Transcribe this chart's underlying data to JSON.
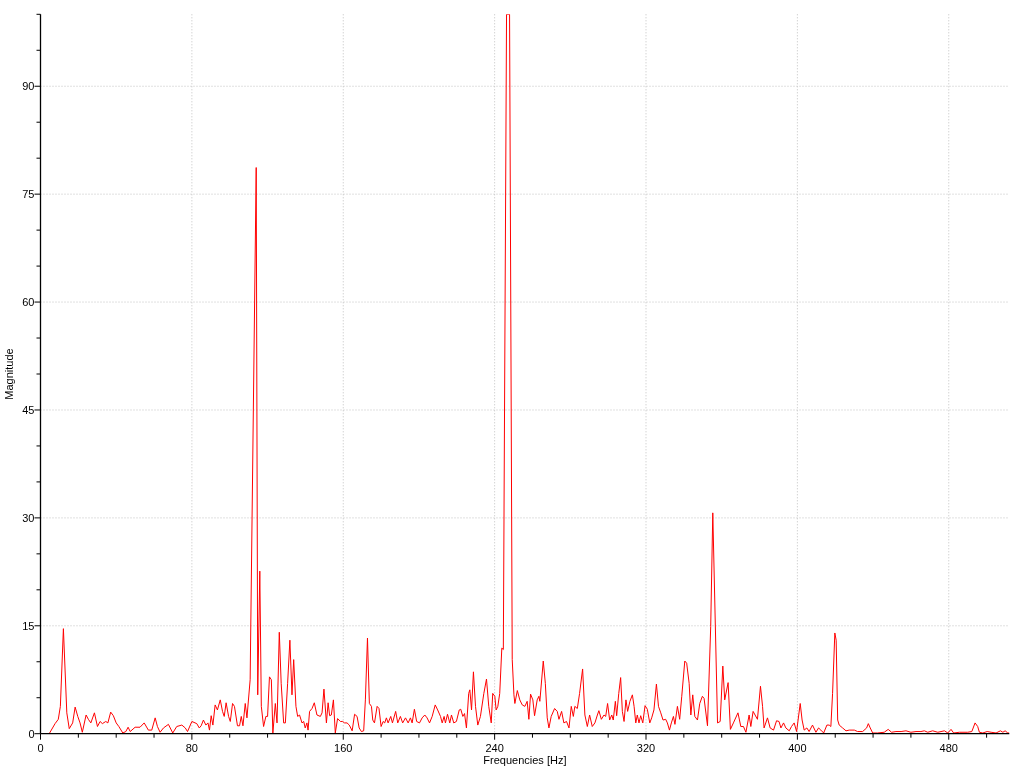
{
  "chart_data": {
    "type": "line",
    "xlabel": "Frequencies [Hz]",
    "ylabel": "Magnitude",
    "xlim": [
      0,
      512
    ],
    "ylim": [
      0,
      100
    ],
    "xticks": [
      0,
      {
        "value": 20,
        "label": null
      },
      {
        "value": 40,
        "label": null
      },
      {
        "value": 60,
        "label": null
      },
      80,
      {
        "value": 100,
        "label": null
      },
      {
        "value": 120,
        "label": null
      },
      {
        "value": 140,
        "label": null
      },
      160,
      {
        "value": 180,
        "label": null
      },
      {
        "value": 200,
        "label": null
      },
      {
        "value": 220,
        "label": null
      },
      240,
      {
        "value": 260,
        "label": null
      },
      {
        "value": 280,
        "label": null
      },
      {
        "value": 300,
        "label": null
      },
      320,
      {
        "value": 340,
        "label": null
      },
      {
        "value": 360,
        "label": null
      },
      {
        "value": 380,
        "label": null
      },
      400,
      {
        "value": 420,
        "label": null
      },
      {
        "value": 440,
        "label": null
      },
      {
        "value": 460,
        "label": null
      },
      480,
      {
        "value": 500,
        "label": null
      }
    ],
    "yticks": [
      0,
      {
        "value": 5,
        "label": null
      },
      {
        "value": 10,
        "label": null
      },
      15,
      {
        "value": 20,
        "label": null
      },
      {
        "value": 25,
        "label": null
      },
      30,
      {
        "value": 35,
        "label": null
      },
      {
        "value": 40,
        "label": null
      },
      45,
      {
        "value": 50,
        "label": null
      },
      {
        "value": 55,
        "label": null
      },
      60,
      {
        "value": 65,
        "label": null
      },
      {
        "value": 70,
        "label": null
      },
      75,
      {
        "value": 80,
        "label": null
      },
      {
        "value": 85,
        "label": null
      },
      90,
      {
        "value": 95,
        "label": null
      },
      {
        "value": 100,
        "label": null
      }
    ],
    "grid": true,
    "series": [
      {
        "color": "#ff0000",
        "x": [
          0,
          4.6,
          7.7,
          9.4,
          10.5,
          12.1,
          13.9,
          15.2,
          17,
          18.3,
          19.7,
          20.9,
          22.1,
          24.1,
          25.3,
          26.6,
          28.5,
          30.1,
          31.5,
          32.7,
          34.5,
          35.6,
          37.1,
          38.5,
          40,
          41.4,
          43.5,
          45.1,
          46.3,
          47.4,
          50,
          52.6,
          54.8,
          57,
          58.8,
          60.6,
          61.8,
          63.2,
          65,
          67.6,
          69.9,
          72,
          74.7,
          76.5,
          77.7,
          80,
          82.6,
          83.9,
          84.9,
          86.1,
          87.4,
          88.5,
          89.3,
          90.2,
          91.1,
          92.3,
          93.5,
          95,
          96.2,
          97.1,
          98.1,
          99.4,
          100.3,
          101.5,
          102.5,
          104.1,
          105.2,
          106.1,
          107,
          108.2,
          109.1,
          110.8,
          114,
          114.8,
          115.9,
          116.7,
          117.9,
          119.1,
          120,
          121,
          122,
          122.8,
          124.1,
          125,
          126.2,
          127.2,
          128.5,
          129.4,
          130.6,
          131.8,
          132.9,
          133.8,
          135,
          135.9,
          136.9,
          138.2,
          139.1,
          139.9,
          140.8,
          141.4,
          142.2,
          143.5,
          144.7,
          146.1,
          147.9,
          148.8,
          149.8,
          151.1,
          152,
          152.8,
          153.7,
          154.8,
          155.8,
          157,
          158.5,
          159.7,
          160.7,
          162,
          163.2,
          164.7,
          166,
          167.3,
          168.4,
          169.6,
          170.8,
          171.7,
          172.8,
          173.8,
          174.9,
          175.6,
          176.5,
          177.9,
          178.9,
          180,
          181.1,
          181.9,
          182.8,
          183.7,
          185.1,
          186,
          187.7,
          188.8,
          190.2,
          191.4,
          192.9,
          194.3,
          195.5,
          196.4,
          197.6,
          198.8,
          200.3,
          201.7,
          203.1,
          204.3,
          205.6,
          207,
          208.6,
          209.9,
          211.4,
          212.3,
          213.3,
          214,
          215.1,
          216.3,
          217.2,
          218.4,
          219.8,
          221.3,
          222.1,
          223.2,
          224.1,
          225.1,
          226.3,
          226.9,
          227.8,
          228.8,
          229.9,
          231.1,
          232.5,
          234.3,
          235.7,
          236.9,
          238.2,
          239,
          240.1,
          240.8,
          241.7,
          242.7,
          243.8,
          244.6,
          246.3,
          247.9,
          249.3,
          250.2,
          250.7,
          252,
          253.3,
          254.6,
          256,
          257.2,
          258.1,
          259,
          260.2,
          261.1,
          262.5,
          263.4,
          263.9,
          265.7,
          266.8,
          267.8,
          268.7,
          269.9,
          271.7,
          273.1,
          274,
          275.4,
          276.6,
          278,
          279.3,
          280.5,
          281.6,
          282.4,
          283.7,
          284.9,
          286.5,
          287.7,
          289,
          290.2,
          291.6,
          293,
          294.3,
          295.1,
          296.4,
          297.8,
          298.7,
          299.7,
          300.8,
          301.9,
          302.7,
          303.8,
          304.5,
          305.6,
          306.6,
          307.5,
          308.4,
          309.4,
          310.3,
          311.5,
          312.8,
          313.7,
          314.6,
          315.4,
          316.3,
          317.2,
          318.3,
          319.5,
          320.7,
          322,
          323,
          324.2,
          325.5,
          326.6,
          327.8,
          329,
          330.4,
          331.3,
          332.4,
          333.4,
          334.5,
          335.3,
          336.6,
          337.8,
          338.9,
          340.5,
          341.5,
          342.8,
          343.7,
          344.7,
          345.8,
          347.2,
          348.4,
          349.8,
          350.7,
          352.5,
          354.2,
          355.3,
          357.8,
          359.2,
          360.6,
          361.6,
          363.4,
          364.6,
          366.2,
          368.6,
          370.1,
          371.5,
          372.8,
          374.5,
          375.4,
          376.6,
          378.9,
          380.5,
          381.6,
          382.4,
          384.2,
          385.6,
          387.4,
          389,
          390.3,
          391.3,
          392.7,
          393.9,
          395.7,
          396.9,
          398.3,
          399.6,
          401.5,
          402.5,
          403.6,
          405,
          406.2,
          408,
          409.8,
          411.2,
          412.4,
          413.9,
          415.6,
          416.8,
          417.7,
          418.6,
          419.8,
          420.5,
          421.3,
          422.1,
          423.9,
          425.7,
          427.4,
          430.1,
          431.8,
          434.5,
          436.6,
          437.5,
          438.5,
          439.8,
          442.4,
          445.9,
          448,
          449.8,
          452.1,
          454.8,
          457.4,
          460,
          462.7,
          465.3,
          467.1,
          468.9,
          471.5,
          474.2,
          477.7,
          479.5,
          481.2,
          482.6,
          485.6,
          490,
          492.2,
          493.9,
          495.3,
          496.2,
          498,
          500.3,
          502.4,
          505,
          507.3,
          508.6,
          509.8,
          511.2,
          512
        ],
        "values": [
          0,
          0,
          1.4,
          2.0,
          3.8,
          14.6,
          2.9,
          0.7,
          1.5,
          3.7,
          2.4,
          1.5,
          0.2,
          2.6,
          2.0,
          1.5,
          2.9,
          1.0,
          1.7,
          1.4,
          1.7,
          1.5,
          3.0,
          2.5,
          1.5,
          1.0,
          0.1,
          0.3,
          0.9,
          0.3,
          0.9,
          0.9,
          1.5,
          0.5,
          0.5,
          2.2,
          1.0,
          0.2,
          0.8,
          1.3,
          0.1,
          1.0,
          1.2,
          0.8,
          0.3,
          1.7,
          1.4,
          0.8,
          1.1,
          1.9,
          1.2,
          1.5,
          0.5,
          2.5,
          1.2,
          4.0,
          3.3,
          4.7,
          3.1,
          2.4,
          4.3,
          2.4,
          1.7,
          4.2,
          3.8,
          1.1,
          1.1,
          2.4,
          1.1,
          4.2,
          2.2,
          7.5,
          78.7,
          5.4,
          22.6,
          3.8,
          1.0,
          2.4,
          2.4,
          7.9,
          7.5,
          0.1,
          4.2,
          1.5,
          14.1,
          7.0,
          1.5,
          1.5,
          7.0,
          13.0,
          5.4,
          10.3,
          3.8,
          2.4,
          2.6,
          1.5,
          1.7,
          0.8,
          1.5,
          0.5,
          3.1,
          3.5,
          4.3,
          2.6,
          2.4,
          2.9,
          6.2,
          1.5,
          4.3,
          2.5,
          2.6,
          4.7,
          0.1,
          2.1,
          1.7,
          1.7,
          1.5,
          1.5,
          1.2,
          0.4,
          2.7,
          2.4,
          0.8,
          0.3,
          0.4,
          4.7,
          13.3,
          4.2,
          3.8,
          1.9,
          1.5,
          3.8,
          3.5,
          1.0,
          1.7,
          1.5,
          2.2,
          1.5,
          2.4,
          1.5,
          3.1,
          1.5,
          2.4,
          1.5,
          2.2,
          1.5,
          2.2,
          1.5,
          3.4,
          1.7,
          1.5,
          2.2,
          2.6,
          2.2,
          1.5,
          2.4,
          4.0,
          3.3,
          2.4,
          1.5,
          2.4,
          1.5,
          2.7,
          1.5,
          2.6,
          1.5,
          1.7,
          3.3,
          3.4,
          2.4,
          2.8,
          0.8,
          5.6,
          6.1,
          3.3,
          8.6,
          3.8,
          1.2,
          2.4,
          5.6,
          7.6,
          3.8,
          1.5,
          5.6,
          5.2,
          3.3,
          3.8,
          5.6,
          11.9,
          11.7,
          100,
          100,
          10.3,
          5.4,
          4.2,
          6.0,
          4.7,
          4.0,
          3.8,
          4.5,
          2.0,
          5.5,
          4.7,
          2.5,
          4.7,
          5.2,
          4.5,
          10.1,
          7.0,
          2.2,
          0.8,
          2.4,
          3.5,
          3.1,
          2.0,
          3.1,
          1.5,
          1.7,
          0.8,
          3.8,
          2.4,
          3.8,
          3.5,
          5.6,
          9.0,
          2.6,
          1.0,
          2.6,
          1.0,
          1.5,
          2.6,
          3.2,
          2.0,
          2.6,
          2.4,
          4.2,
          1.9,
          2.6,
          1.9,
          4.5,
          2.5,
          5.6,
          7.8,
          3.1,
          1.7,
          4.7,
          3.1,
          4.5,
          5.4,
          3.8,
          1.5,
          2.6,
          1.5,
          2.5,
          1.5,
          3.9,
          3.4,
          1.5,
          2.2,
          3.3,
          6.9,
          3.8,
          2.9,
          1.9,
          2.0,
          1.5,
          0.5,
          1.5,
          2.4,
          1.3,
          3.8,
          2.0,
          5.2,
          10.1,
          9.8,
          7.0,
          2.6,
          5.4,
          2.4,
          1.9,
          4.2,
          5.2,
          4.9,
          1.1,
          14.9,
          30.7,
          1.5,
          1.7,
          9.4,
          4.7,
          7.1,
          0.6,
          1.5,
          2.9,
          1.0,
          1.0,
          0.2,
          2.6,
          1.0,
          3.1,
          2.0,
          6.6,
          3.8,
          0.8,
          2.2,
          0.8,
          0.5,
          1.8,
          1.7,
          0.8,
          1.5,
          0.8,
          0.4,
          1.0,
          1.5,
          0.3,
          4.2,
          1.9,
          0.5,
          0.8,
          0.3,
          1.2,
          0.2,
          0.8,
          0.5,
          0.1,
          1.2,
          1.2,
          1.0,
          5.6,
          14.0,
          13.0,
          1.9,
          1.2,
          0.8,
          0.4,
          0.5,
          0.5,
          0.3,
          0.3,
          0.8,
          1.4,
          0.8,
          0.1,
          0.1,
          0.2,
          0.6,
          0.2,
          0.3,
          0.3,
          0.4,
          0.2,
          0.3,
          0.3,
          0.4,
          0.2,
          0.4,
          0.2,
          0.4,
          0.1,
          0.6,
          0.1,
          0.2,
          0.2,
          0.3,
          1.5,
          1.0,
          0.2,
          0.1,
          0.3,
          0.2,
          0.1,
          0.4,
          0.2,
          0.4,
          0.1,
          0.1
        ]
      }
    ]
  }
}
